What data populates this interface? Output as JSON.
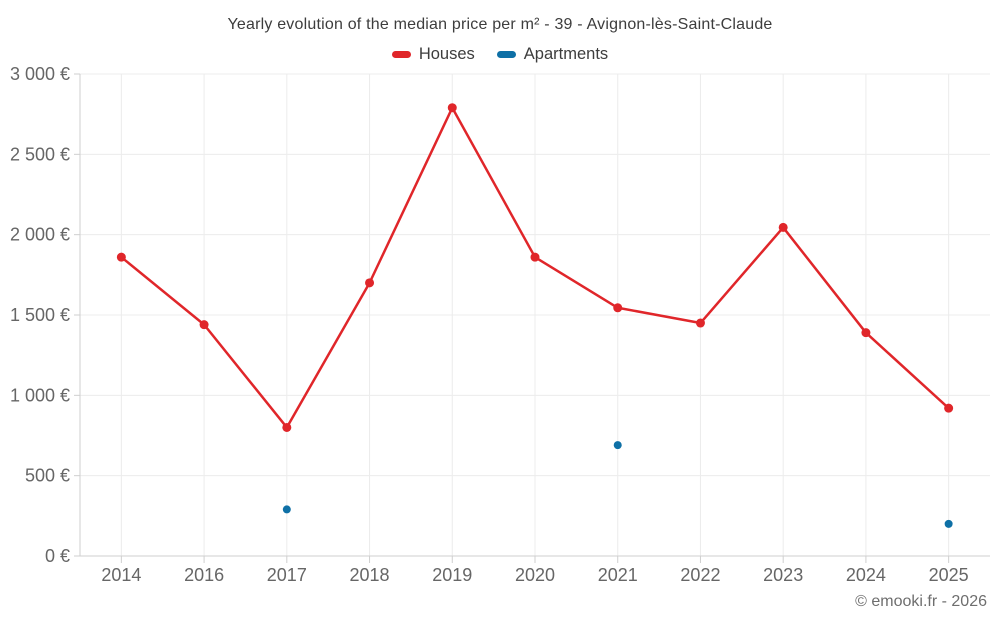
{
  "chart_data": {
    "type": "line",
    "title": "Yearly evolution of the median price per m² - 39 - Avignon-lès-Saint-Claude",
    "categories": [
      "2014",
      "2016",
      "2017",
      "2018",
      "2019",
      "2020",
      "2021",
      "2022",
      "2023",
      "2024",
      "2025"
    ],
    "series": [
      {
        "name": "Houses",
        "type": "line",
        "color": "#e0262a",
        "marker_radius": 4.5,
        "line_width": 2.5,
        "values": [
          1860,
          1440,
          800,
          1700,
          2790,
          1860,
          1545,
          1450,
          2045,
          1390,
          920
        ]
      },
      {
        "name": "Apartments",
        "type": "scatter",
        "color": "#0e70a6",
        "marker_radius": 4,
        "line_width": 0,
        "values": [
          null,
          null,
          290,
          null,
          null,
          null,
          690,
          null,
          null,
          null,
          200
        ]
      }
    ],
    "ylim": [
      0,
      3000
    ],
    "yticks": [
      {
        "value": 0,
        "label": "0 €"
      },
      {
        "value": 500,
        "label": "500 €"
      },
      {
        "value": 1000,
        "label": "1 000 €"
      },
      {
        "value": 1500,
        "label": "1 500 €"
      },
      {
        "value": 2000,
        "label": "2 000 €"
      },
      {
        "value": 2500,
        "label": "2 500 €"
      },
      {
        "value": 3000,
        "label": "3 000 €"
      }
    ],
    "grid": true,
    "legend_position": "top-center"
  },
  "footer": {
    "copyright": "© emooki.fr - 2026"
  },
  "style": {
    "grid_color": "#ececec",
    "axis_color": "#cfcfcf",
    "tick_label_color": "#666666",
    "title_color": "#3d3d3d",
    "copyright_color": "#6e6e6e"
  }
}
